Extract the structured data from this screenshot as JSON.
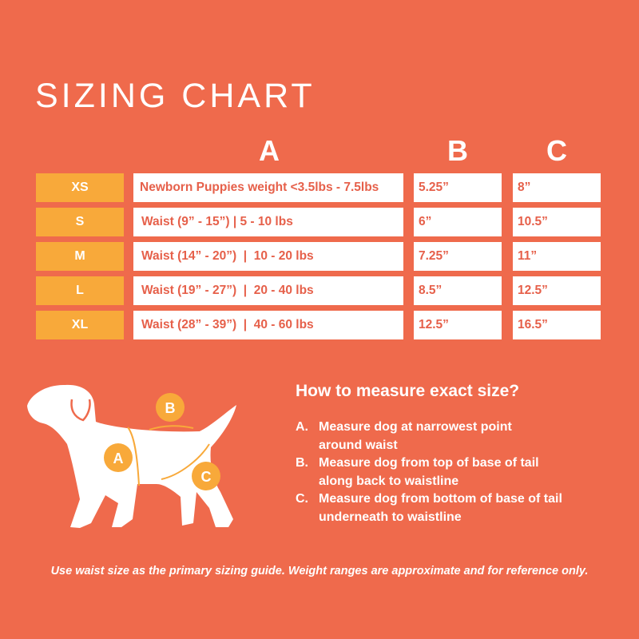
{
  "title": "SIZING CHART",
  "columns": [
    "A",
    "B",
    "C"
  ],
  "rows": [
    {
      "size": "XS",
      "a": "Newborn Puppies weight <3.5lbs - 7.5lbs",
      "b": "5.25”",
      "c": "8”"
    },
    {
      "size": "S",
      "a": "Waist (9” - 15”) | 5 - 10 lbs",
      "b": "6”",
      "c": "10.5”"
    },
    {
      "size": "M",
      "a": "Waist (14” - 20”)  |  10 - 20 lbs",
      "b": "7.25”",
      "c": "11”"
    },
    {
      "size": "L",
      "a": "Waist (19” - 27”)  |  20 - 40 lbs",
      "b": "8.5”",
      "c": "12.5”"
    },
    {
      "size": "XL",
      "a": "Waist (28” - 39”)  |  40 - 60 lbs",
      "b": "12.5”",
      "c": "16.5”"
    }
  ],
  "diagram": {
    "labels": [
      "A",
      "B",
      "C"
    ],
    "icon": "dog-silhouette"
  },
  "howto": {
    "heading": "How to measure exact size?",
    "steps": [
      {
        "letter": "A.",
        "text": "Measure dog at narrowest point around waist"
      },
      {
        "letter": "B.",
        "text": "Measure dog from top of base of tail along back to waistline"
      },
      {
        "letter": "C.",
        "text": "Measure dog from bottom of base of tail underneath to waistline"
      }
    ]
  },
  "footer": "Use waist size as the primary sizing guide. Weight ranges are approximate and for reference only.",
  "colors": {
    "background": "#ef6a4c",
    "accent": "#f8a93a",
    "text_on_white": "#e6604a"
  }
}
